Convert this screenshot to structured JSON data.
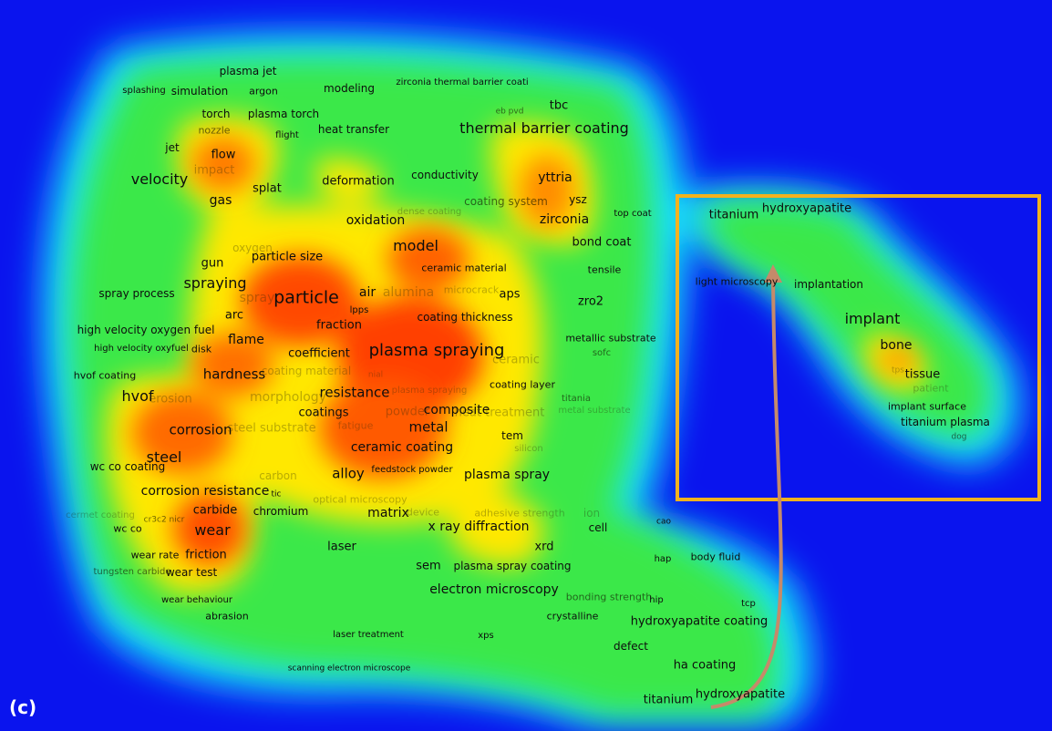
{
  "panel_label": "(c)",
  "colors": {
    "background": "#0a14ee",
    "density_low": "#00e5ff",
    "density_mid": "#2ee84e",
    "density_high": "#ffe600",
    "density_peak": "#ff3a00",
    "highlight_box": "#f2b21e",
    "arrow": "#c58a6a"
  },
  "terms": [
    {
      "text": "plasma jet",
      "size": 12,
      "w": "n"
    },
    {
      "text": "splashing",
      "size": 10,
      "w": "n"
    },
    {
      "text": "simulation",
      "size": 12,
      "w": "n"
    },
    {
      "text": "argon",
      "size": 11,
      "w": "n"
    },
    {
      "text": "modeling",
      "size": 12,
      "w": "n"
    },
    {
      "text": "zirconia thermal barrier coati",
      "size": 10,
      "w": "n"
    },
    {
      "text": "eb pvd",
      "size": 9,
      "w": "m"
    },
    {
      "text": "tbc",
      "size": 13,
      "w": "n"
    },
    {
      "text": "torch",
      "size": 12,
      "w": "n"
    },
    {
      "text": "plasma torch",
      "size": 12,
      "w": "n"
    },
    {
      "text": "nozzle",
      "size": 11,
      "w": "m"
    },
    {
      "text": "flight",
      "size": 10,
      "w": "n"
    },
    {
      "text": "heat transfer",
      "size": 12,
      "w": "n"
    },
    {
      "text": "thermal barrier coating",
      "size": 16,
      "w": "n"
    },
    {
      "text": "jet",
      "size": 12,
      "w": "n"
    },
    {
      "text": "flow",
      "size": 13,
      "w": "n"
    },
    {
      "text": "impact",
      "size": 13,
      "w": "f"
    },
    {
      "text": "velocity",
      "size": 16,
      "w": "n"
    },
    {
      "text": "conductivity",
      "size": 12,
      "w": "n"
    },
    {
      "text": "yttria",
      "size": 14,
      "w": "n"
    },
    {
      "text": "deformation",
      "size": 13,
      "w": "n"
    },
    {
      "text": "splat",
      "size": 13,
      "w": "n"
    },
    {
      "text": "gas",
      "size": 14,
      "w": "n"
    },
    {
      "text": "coating system",
      "size": 12,
      "w": "m"
    },
    {
      "text": "ysz",
      "size": 12,
      "w": "n"
    },
    {
      "text": "dense coating",
      "size": 10,
      "w": "f"
    },
    {
      "text": "top coat",
      "size": 10,
      "w": "n"
    },
    {
      "text": "zirconia",
      "size": 14,
      "w": "n"
    },
    {
      "text": "oxidation",
      "size": 14,
      "w": "n"
    },
    {
      "text": "bond coat",
      "size": 13,
      "w": "n"
    },
    {
      "text": "model",
      "size": 16,
      "w": "n"
    },
    {
      "text": "oxygen",
      "size": 12,
      "w": "f"
    },
    {
      "text": "particle size",
      "size": 13,
      "w": "n"
    },
    {
      "text": "gun",
      "size": 13,
      "w": "n"
    },
    {
      "text": "ceramic material",
      "size": 11,
      "w": "n"
    },
    {
      "text": "tensile",
      "size": 11,
      "w": "n"
    },
    {
      "text": "spraying",
      "size": 16,
      "w": "n"
    },
    {
      "text": "spray process",
      "size": 12,
      "w": "n"
    },
    {
      "text": "spray",
      "size": 14,
      "w": "f"
    },
    {
      "text": "particle",
      "size": 19,
      "w": "n"
    },
    {
      "text": "air",
      "size": 14,
      "w": "n"
    },
    {
      "text": "alumina",
      "size": 14,
      "w": "f"
    },
    {
      "text": "microcrack",
      "size": 11,
      "w": "f"
    },
    {
      "text": "aps",
      "size": 13,
      "w": "n"
    },
    {
      "text": "zro2",
      "size": 13,
      "w": "n"
    },
    {
      "text": "lpps",
      "size": 10,
      "w": "n"
    },
    {
      "text": "arc",
      "size": 13,
      "w": "n"
    },
    {
      "text": "fraction",
      "size": 13,
      "w": "n"
    },
    {
      "text": "coating thickness",
      "size": 12,
      "w": "n"
    },
    {
      "text": "high velocity oxygen fuel",
      "size": 12,
      "w": "n"
    },
    {
      "text": "flame",
      "size": 14,
      "w": "n"
    },
    {
      "text": "metallic substrate",
      "size": 11,
      "w": "n"
    },
    {
      "text": "high velocity oxyfuel",
      "size": 10,
      "w": "n"
    },
    {
      "text": "disk",
      "size": 11,
      "w": "n"
    },
    {
      "text": "coefficient",
      "size": 13,
      "w": "n"
    },
    {
      "text": "plasma spraying",
      "size": 18,
      "w": "n"
    },
    {
      "text": "ceramic",
      "size": 13,
      "w": "f"
    },
    {
      "text": "sofc",
      "size": 10,
      "w": "m"
    },
    {
      "text": "hvof coating",
      "size": 11,
      "w": "n"
    },
    {
      "text": "hardness",
      "size": 15,
      "w": "n"
    },
    {
      "text": "coating material",
      "size": 12,
      "w": "f"
    },
    {
      "text": "nial",
      "size": 9,
      "w": "f"
    },
    {
      "text": "coating layer",
      "size": 11,
      "w": "n"
    },
    {
      "text": "hvof",
      "size": 16,
      "w": "n"
    },
    {
      "text": "erosion",
      "size": 13,
      "w": "f"
    },
    {
      "text": "morphology",
      "size": 14,
      "w": "f"
    },
    {
      "text": "resistance",
      "size": 15,
      "w": "n"
    },
    {
      "text": "plasma spraying",
      "size": 10,
      "w": "f"
    },
    {
      "text": "titania",
      "size": 10,
      "w": "m"
    },
    {
      "text": "coatings",
      "size": 13,
      "w": "n"
    },
    {
      "text": "powder",
      "size": 13,
      "w": "f"
    },
    {
      "text": "composite",
      "size": 14,
      "w": "n"
    },
    {
      "text": "heat treatment",
      "size": 13,
      "w": "f"
    },
    {
      "text": "metal substrate",
      "size": 10,
      "w": "f"
    },
    {
      "text": "corrosion",
      "size": 15,
      "w": "n"
    },
    {
      "text": "steel substrate",
      "size": 13,
      "w": "f"
    },
    {
      "text": "metal",
      "size": 15,
      "w": "n"
    },
    {
      "text": "fatigue",
      "size": 11,
      "w": "f"
    },
    {
      "text": "tem",
      "size": 12,
      "w": "n"
    },
    {
      "text": "steel",
      "size": 16,
      "w": "n"
    },
    {
      "text": "ceramic coating",
      "size": 14,
      "w": "n"
    },
    {
      "text": "silicon",
      "size": 10,
      "w": "f"
    },
    {
      "text": "wc co coating",
      "size": 12,
      "w": "n"
    },
    {
      "text": "carbon",
      "size": 12,
      "w": "f"
    },
    {
      "text": "alloy",
      "size": 15,
      "w": "n"
    },
    {
      "text": "feedstock powder",
      "size": 10,
      "w": "n"
    },
    {
      "text": "plasma spray",
      "size": 14,
      "w": "n"
    },
    {
      "text": "corrosion resistance",
      "size": 14,
      "w": "n"
    },
    {
      "text": "tic",
      "size": 9,
      "w": "n"
    },
    {
      "text": "optical microscopy",
      "size": 11,
      "w": "f"
    },
    {
      "text": "carbide",
      "size": 13,
      "w": "n"
    },
    {
      "text": "chromium",
      "size": 12,
      "w": "n"
    },
    {
      "text": "cermet coating",
      "size": 10,
      "w": "f"
    },
    {
      "text": "device",
      "size": 11,
      "w": "f"
    },
    {
      "text": "adhesive strength",
      "size": 11,
      "w": "f"
    },
    {
      "text": "ion",
      "size": 12,
      "w": "f"
    },
    {
      "text": "cr3c2 nicr",
      "size": 9,
      "w": "m"
    },
    {
      "text": "matrix",
      "size": 14,
      "w": "n"
    },
    {
      "text": "wc co",
      "size": 11,
      "w": "n"
    },
    {
      "text": "wear",
      "size": 16,
      "w": "n"
    },
    {
      "text": "x ray diffraction",
      "size": 14,
      "w": "n"
    },
    {
      "text": "cell",
      "size": 12,
      "w": "n"
    },
    {
      "text": "cao",
      "size": 9,
      "w": "n"
    },
    {
      "text": "laser",
      "size": 13,
      "w": "n"
    },
    {
      "text": "xrd",
      "size": 13,
      "w": "n"
    },
    {
      "text": "wear rate",
      "size": 11,
      "w": "n"
    },
    {
      "text": "friction",
      "size": 13,
      "w": "n"
    },
    {
      "text": "hap",
      "size": 10,
      "w": "n"
    },
    {
      "text": "body fluid",
      "size": 11,
      "w": "n"
    },
    {
      "text": "tungsten carbide",
      "size": 10,
      "w": "m"
    },
    {
      "text": "wear test",
      "size": 12,
      "w": "n"
    },
    {
      "text": "sem",
      "size": 13,
      "w": "n"
    },
    {
      "text": "plasma spray coating",
      "size": 12,
      "w": "n"
    },
    {
      "text": "electron microscopy",
      "size": 14,
      "w": "n"
    },
    {
      "text": "bonding strength",
      "size": 11,
      "w": "m"
    },
    {
      "text": "hip",
      "size": 10,
      "w": "n"
    },
    {
      "text": "tcp",
      "size": 10,
      "w": "n"
    },
    {
      "text": "wear behaviour",
      "size": 10,
      "w": "n"
    },
    {
      "text": "abrasion",
      "size": 11,
      "w": "n"
    },
    {
      "text": "crystalline",
      "size": 11,
      "w": "n"
    },
    {
      "text": "hydroxyapatite coating",
      "size": 13,
      "w": "n"
    },
    {
      "text": "laser treatment",
      "size": 10,
      "w": "n"
    },
    {
      "text": "xps",
      "size": 10,
      "w": "n"
    },
    {
      "text": "defect",
      "size": 12,
      "w": "n"
    },
    {
      "text": "ha coating",
      "size": 13,
      "w": "n"
    },
    {
      "text": "scanning electron microscope",
      "size": 9,
      "w": "n"
    },
    {
      "text": "titanium",
      "size": 13,
      "w": "n"
    },
    {
      "text": "hydroxyapatite",
      "size": 13,
      "w": "n"
    },
    {
      "text": "titanium",
      "size": 13,
      "w": "n"
    },
    {
      "text": "hydroxyapatite",
      "size": 13,
      "w": "n"
    },
    {
      "text": "light microscopy",
      "size": 11,
      "w": "n"
    },
    {
      "text": "implantation",
      "size": 12,
      "w": "n"
    },
    {
      "text": "implant",
      "size": 16,
      "w": "n"
    },
    {
      "text": "bone",
      "size": 14,
      "w": "n"
    },
    {
      "text": "tps",
      "size": 9,
      "w": "f"
    },
    {
      "text": "tissue",
      "size": 13,
      "w": "n"
    },
    {
      "text": "patient",
      "size": 11,
      "w": "f"
    },
    {
      "text": "implant surface",
      "size": 11,
      "w": "n"
    },
    {
      "text": "titanium plasma",
      "size": 12,
      "w": "n"
    },
    {
      "text": "dog",
      "size": 9,
      "w": "m"
    }
  ]
}
